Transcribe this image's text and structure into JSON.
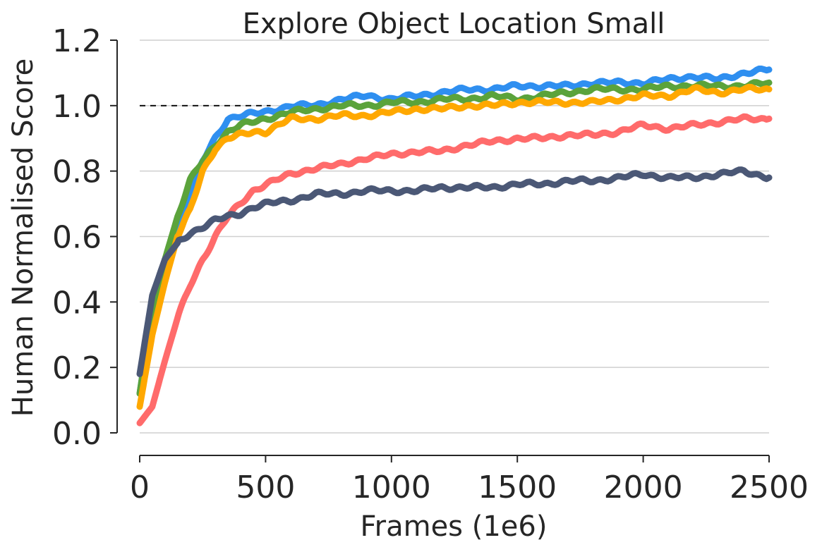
{
  "chart_data": {
    "type": "line",
    "title": "Explore Object Location Small",
    "xlabel": "Frames (1e6)",
    "ylabel": "Human Normalised Score",
    "xlim": [
      0,
      2500
    ],
    "ylim": [
      0.0,
      1.2
    ],
    "xticks": [
      0,
      500,
      1000,
      1500,
      2000,
      2500
    ],
    "xtick_labels": [
      "0",
      "500",
      "1000",
      "1500",
      "2000",
      "2500"
    ],
    "yticks": [
      0.0,
      0.2,
      0.4,
      0.6,
      0.8,
      1.0,
      1.2
    ],
    "ytick_labels": [
      "0.0",
      "0.2",
      "0.4",
      "0.6",
      "0.8",
      "1.0",
      "1.2"
    ],
    "grid": "horizontal",
    "reference_line": {
      "y": 1.0,
      "x_range": [
        0,
        520
      ],
      "style": "dashed",
      "color": "#111111"
    },
    "series": [
      {
        "color": "#2f8ff0",
        "points": [
          [
            0,
            0.12
          ],
          [
            50,
            0.38
          ],
          [
            100,
            0.52
          ],
          [
            150,
            0.63
          ],
          [
            200,
            0.73
          ],
          [
            250,
            0.83
          ],
          [
            300,
            0.9
          ],
          [
            350,
            0.96
          ],
          [
            400,
            0.97
          ],
          [
            450,
            0.975
          ],
          [
            500,
            0.98
          ],
          [
            600,
            1.0
          ],
          [
            700,
            1.0
          ],
          [
            800,
            1.02
          ],
          [
            900,
            1.03
          ],
          [
            1000,
            1.02
          ],
          [
            1100,
            1.03
          ],
          [
            1200,
            1.04
          ],
          [
            1300,
            1.05
          ],
          [
            1400,
            1.05
          ],
          [
            1500,
            1.06
          ],
          [
            1600,
            1.06
          ],
          [
            1700,
            1.06
          ],
          [
            1800,
            1.07
          ],
          [
            1900,
            1.07
          ],
          [
            2000,
            1.07
          ],
          [
            2100,
            1.08
          ],
          [
            2200,
            1.09
          ],
          [
            2300,
            1.08
          ],
          [
            2400,
            1.1
          ],
          [
            2500,
            1.11
          ]
        ]
      },
      {
        "color": "#5ba33b",
        "points": [
          [
            0,
            0.12
          ],
          [
            50,
            0.38
          ],
          [
            100,
            0.53
          ],
          [
            150,
            0.66
          ],
          [
            200,
            0.77
          ],
          [
            250,
            0.83
          ],
          [
            300,
            0.88
          ],
          [
            350,
            0.92
          ],
          [
            400,
            0.94
          ],
          [
            450,
            0.95
          ],
          [
            500,
            0.96
          ],
          [
            600,
            0.98
          ],
          [
            700,
            0.99
          ],
          [
            800,
            1.0
          ],
          [
            900,
            1.0
          ],
          [
            1000,
            1.01
          ],
          [
            1100,
            1.01
          ],
          [
            1200,
            1.02
          ],
          [
            1300,
            1.02
          ],
          [
            1400,
            1.03
          ],
          [
            1500,
            1.02
          ],
          [
            1600,
            1.03
          ],
          [
            1700,
            1.04
          ],
          [
            1800,
            1.05
          ],
          [
            1900,
            1.05
          ],
          [
            2000,
            1.05
          ],
          [
            2100,
            1.06
          ],
          [
            2200,
            1.06
          ],
          [
            2300,
            1.06
          ],
          [
            2400,
            1.06
          ],
          [
            2500,
            1.07
          ]
        ]
      },
      {
        "color": "#ffa800",
        "points": [
          [
            0,
            0.08
          ],
          [
            50,
            0.3
          ],
          [
            100,
            0.46
          ],
          [
            150,
            0.6
          ],
          [
            200,
            0.68
          ],
          [
            250,
            0.8
          ],
          [
            300,
            0.87
          ],
          [
            350,
            0.9
          ],
          [
            400,
            0.91
          ],
          [
            450,
            0.92
          ],
          [
            500,
            0.92
          ],
          [
            600,
            0.96
          ],
          [
            700,
            0.96
          ],
          [
            800,
            0.97
          ],
          [
            900,
            0.97
          ],
          [
            1000,
            0.98
          ],
          [
            1100,
            0.99
          ],
          [
            1200,
            0.99
          ],
          [
            1300,
            1.0
          ],
          [
            1400,
            1.0
          ],
          [
            1500,
            1.01
          ],
          [
            1600,
            1.01
          ],
          [
            1700,
            1.01
          ],
          [
            1800,
            1.01
          ],
          [
            1900,
            1.02
          ],
          [
            2000,
            1.03
          ],
          [
            2100,
            1.03
          ],
          [
            2200,
            1.05
          ],
          [
            2300,
            1.04
          ],
          [
            2400,
            1.05
          ],
          [
            2500,
            1.05
          ]
        ]
      },
      {
        "color": "#ff6b6b",
        "points": [
          [
            0,
            0.03
          ],
          [
            50,
            0.08
          ],
          [
            100,
            0.22
          ],
          [
            150,
            0.35
          ],
          [
            200,
            0.45
          ],
          [
            250,
            0.53
          ],
          [
            300,
            0.6
          ],
          [
            350,
            0.66
          ],
          [
            400,
            0.7
          ],
          [
            450,
            0.74
          ],
          [
            500,
            0.76
          ],
          [
            600,
            0.79
          ],
          [
            700,
            0.81
          ],
          [
            800,
            0.82
          ],
          [
            900,
            0.84
          ],
          [
            1000,
            0.85
          ],
          [
            1100,
            0.86
          ],
          [
            1200,
            0.86
          ],
          [
            1300,
            0.88
          ],
          [
            1400,
            0.89
          ],
          [
            1500,
            0.9
          ],
          [
            1600,
            0.9
          ],
          [
            1700,
            0.91
          ],
          [
            1800,
            0.91
          ],
          [
            1900,
            0.92
          ],
          [
            2000,
            0.94
          ],
          [
            2100,
            0.93
          ],
          [
            2200,
            0.94
          ],
          [
            2300,
            0.95
          ],
          [
            2400,
            0.96
          ],
          [
            2500,
            0.96
          ]
        ]
      },
      {
        "color": "#4b5876",
        "points": [
          [
            0,
            0.18
          ],
          [
            50,
            0.42
          ],
          [
            100,
            0.53
          ],
          [
            150,
            0.58
          ],
          [
            200,
            0.61
          ],
          [
            250,
            0.63
          ],
          [
            300,
            0.65
          ],
          [
            350,
            0.66
          ],
          [
            400,
            0.67
          ],
          [
            450,
            0.69
          ],
          [
            500,
            0.7
          ],
          [
            600,
            0.71
          ],
          [
            700,
            0.73
          ],
          [
            800,
            0.73
          ],
          [
            900,
            0.74
          ],
          [
            1000,
            0.74
          ],
          [
            1100,
            0.74
          ],
          [
            1200,
            0.75
          ],
          [
            1300,
            0.75
          ],
          [
            1400,
            0.75
          ],
          [
            1500,
            0.76
          ],
          [
            1600,
            0.76
          ],
          [
            1700,
            0.77
          ],
          [
            1800,
            0.77
          ],
          [
            1900,
            0.78
          ],
          [
            2000,
            0.79
          ],
          [
            2100,
            0.78
          ],
          [
            2200,
            0.78
          ],
          [
            2300,
            0.79
          ],
          [
            2400,
            0.8
          ],
          [
            2500,
            0.78
          ]
        ]
      }
    ]
  }
}
